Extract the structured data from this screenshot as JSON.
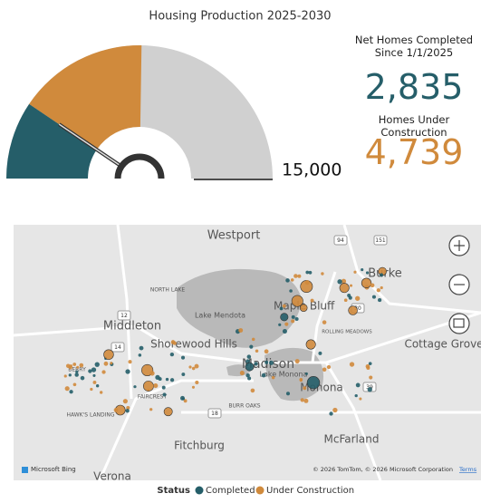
{
  "chart_data": {
    "type": "gauge",
    "title": "Housing Production 2025-2030",
    "values": [
      2835,
      4739
    ],
    "value_labels": [
      "2,835",
      "4,739"
    ],
    "colors": [
      "#255e69",
      "#d08a3c"
    ],
    "remainder_color": "#d0d0d0",
    "ylim": [
      0,
      15000
    ],
    "yticks": [
      {
        "value": 15000,
        "label": "15,000"
      }
    ],
    "kpi_labels": [
      "Net Homes Completed Since 1/1/2025",
      "Homes Under Construction"
    ]
  },
  "map": {
    "places": [
      "Westport",
      "Burke",
      "NORTH LAKE",
      "Lake Mendota",
      "Maple Bluff",
      "Middleton",
      "Shorewood Hills",
      "Madison",
      "Lake Monona",
      "ROLLING MEADOWS",
      "Cottage Grove",
      "FAIRCREST",
      "BURR OAKS",
      "Monona",
      "HAWK'S LANDING",
      "McFarland",
      "Fitchburg",
      "Verona",
      "BERRY"
    ],
    "roads": [
      "94",
      "151",
      "12",
      "14",
      "30",
      "39",
      "18"
    ],
    "legend_title": "Status",
    "legend": [
      "Completed",
      "Under Construction"
    ],
    "bing": "Microsoft Bing",
    "attribution": "© 2026 TomTom, © 2026 Microsoft Corporation",
    "terms": "Terms"
  }
}
